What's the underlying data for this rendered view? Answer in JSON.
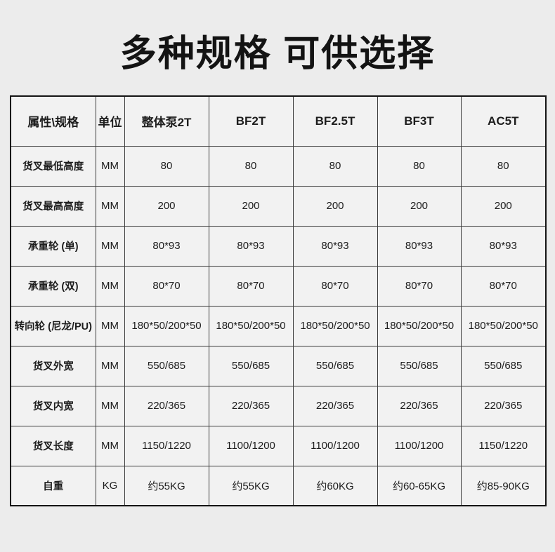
{
  "page": {
    "title": "多种规格 可供选择"
  },
  "colors": {
    "page_background": "#ececec",
    "cell_background": "#f2f2f2",
    "outer_border": "#141414",
    "inner_border": "#3c3c3c",
    "text": "#1d1d1d"
  },
  "table": {
    "columns": [
      "属性\\规格",
      "单位",
      "整体泵2T",
      "BF2T",
      "BF2.5T",
      "BF3T",
      "AC5T"
    ],
    "rows": [
      {
        "label": "货叉最低高度",
        "unit": "MM",
        "values": [
          "80",
          "80",
          "80",
          "80",
          "80"
        ]
      },
      {
        "label": "货叉最高高度",
        "unit": "MM",
        "values": [
          "200",
          "200",
          "200",
          "200",
          "200"
        ]
      },
      {
        "label": "承重轮 (单)",
        "unit": "MM",
        "values": [
          "80*93",
          "80*93",
          "80*93",
          "80*93",
          "80*93"
        ]
      },
      {
        "label": "承重轮 (双)",
        "unit": "MM",
        "values": [
          "80*70",
          "80*70",
          "80*70",
          "80*70",
          "80*70"
        ]
      },
      {
        "label": "转向轮 (尼龙/PU)",
        "unit": "MM",
        "values": [
          "180*50/200*50",
          "180*50/200*50",
          "180*50/200*50",
          "180*50/200*50",
          "180*50/200*50"
        ]
      },
      {
        "label": "货叉外宽",
        "unit": "MM",
        "values": [
          "550/685",
          "550/685",
          "550/685",
          "550/685",
          "550/685"
        ]
      },
      {
        "label": "货叉内宽",
        "unit": "MM",
        "values": [
          "220/365",
          "220/365",
          "220/365",
          "220/365",
          "220/365"
        ]
      },
      {
        "label": "货叉长度",
        "unit": "MM",
        "values": [
          "1150/1220",
          "1100/1200",
          "1100/1200",
          "1100/1200",
          "1150/1220"
        ]
      },
      {
        "label": "自重",
        "unit": "KG",
        "values": [
          "约55KG",
          "约55KG",
          "约60KG",
          "约60-65KG",
          "约85-90KG"
        ]
      }
    ]
  }
}
